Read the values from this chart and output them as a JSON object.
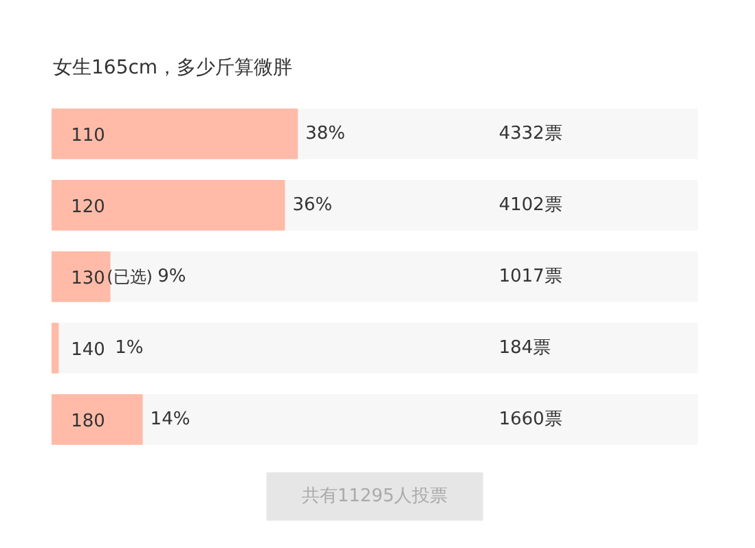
{
  "chart_data": {
    "type": "bar",
    "orientation": "horizontal",
    "title": "女生165cm，多少斤算微胖",
    "categories": [
      "110",
      "120",
      "130",
      "140",
      "180"
    ],
    "values": [
      38,
      36,
      9,
      1,
      14
    ],
    "value_labels": [
      "38%",
      "36%",
      "9%",
      "1%",
      "14%"
    ],
    "color": "#ffbba8",
    "xlim": [
      0,
      100
    ],
    "tick_labels": false,
    "annotations": [
      "4332票",
      "4102票",
      "1017票",
      "184票",
      "1660票",
      "(已选)",
      "共有11295人投票"
    ]
  }
}
